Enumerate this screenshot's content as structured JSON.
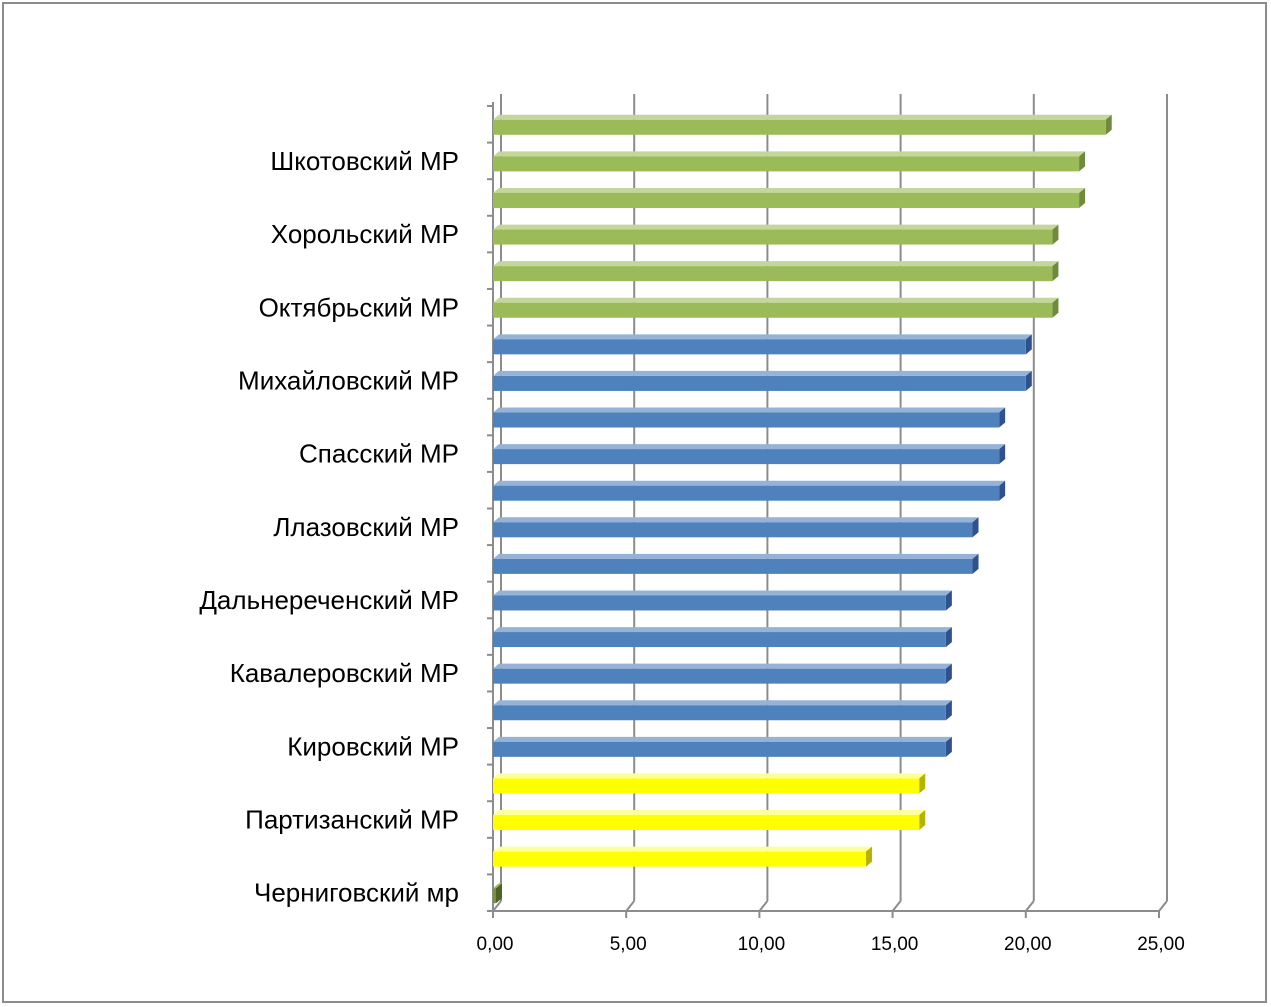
{
  "chart_data": {
    "type": "bar",
    "orientation": "horizontal",
    "title": "",
    "xlabel": "",
    "ylabel": "",
    "xlim": [
      0,
      25
    ],
    "x_ticks": [
      "0,00",
      "5,00",
      "10,00",
      "15,00",
      "20,00",
      "25,00"
    ],
    "x_tick_values": [
      0,
      5,
      10,
      15,
      20,
      25
    ],
    "grid": "vertical",
    "legend": "none",
    "colors": {
      "high": "#9bbb59",
      "mid": "#4f81bd",
      "low": "#ffff00",
      "lowest": "#77933c"
    },
    "category_labels": [
      "Шкотовский МР",
      "Хорольский МР",
      "Октябрьский МР",
      "Михайловский МР",
      "Спасский МР",
      "Ллазовский МР",
      "Дальнереченский МР",
      "Кавалеровский МР",
      "Кировский МР",
      "Партизанский МР",
      "Черниговский мр"
    ],
    "bars": [
      {
        "value": 23,
        "color": "high"
      },
      {
        "value": 22,
        "color": "high"
      },
      {
        "value": 22,
        "color": "high"
      },
      {
        "value": 21,
        "color": "high"
      },
      {
        "value": 21,
        "color": "high"
      },
      {
        "value": 21,
        "color": "high"
      },
      {
        "value": 20,
        "color": "mid"
      },
      {
        "value": 20,
        "color": "mid"
      },
      {
        "value": 19,
        "color": "mid"
      },
      {
        "value": 19,
        "color": "mid"
      },
      {
        "value": 19,
        "color": "mid"
      },
      {
        "value": 18,
        "color": "mid"
      },
      {
        "value": 18,
        "color": "mid"
      },
      {
        "value": 17,
        "color": "mid"
      },
      {
        "value": 17,
        "color": "mid"
      },
      {
        "value": 17,
        "color": "mid"
      },
      {
        "value": 17,
        "color": "mid"
      },
      {
        "value": 17,
        "color": "mid"
      },
      {
        "value": 16,
        "color": "low"
      },
      {
        "value": 16,
        "color": "low"
      },
      {
        "value": 14,
        "color": "low"
      },
      {
        "value": 0,
        "color": "lowest"
      }
    ]
  }
}
